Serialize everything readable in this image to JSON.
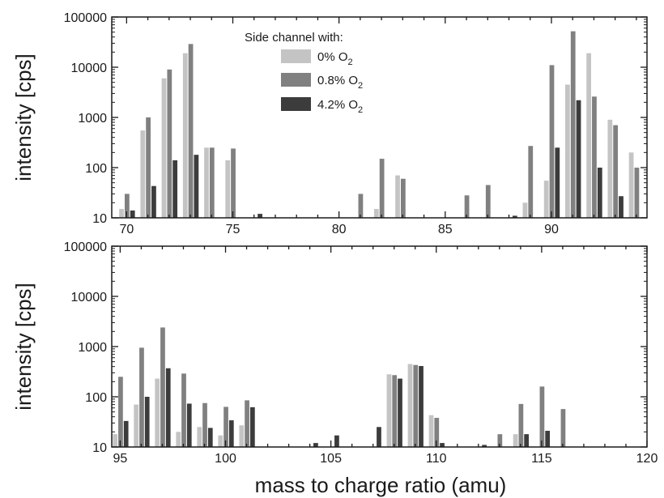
{
  "chart_data": [
    {
      "type": "bar",
      "ylabel": "intensity [cps]",
      "yscale": "log",
      "ylim": [
        10,
        100000
      ],
      "xlim": [
        69.3,
        94.5
      ],
      "xticks": [
        "70",
        "75",
        "80",
        "85",
        "90"
      ],
      "yticks": [
        "10",
        "100",
        "1000",
        "10000",
        "100000"
      ],
      "legend": {
        "title": "Side channel with:",
        "position": "top-center",
        "entries": [
          {
            "text": "0% O",
            "sub": "2"
          },
          {
            "text": "0.8% O",
            "sub": "2"
          },
          {
            "text": "4.2% O",
            "sub": "2"
          }
        ]
      },
      "series": [
        {
          "name": "0% O2",
          "color": "#c4c4c4",
          "x": [
            70,
            71,
            72,
            73,
            74,
            75,
            82,
            83,
            89,
            90,
            91,
            92,
            93,
            94
          ],
          "values": [
            15,
            550,
            6000,
            19000,
            250,
            140,
            15,
            70,
            20,
            55,
            4500,
            19000,
            900,
            200
          ]
        },
        {
          "name": "0.8% O2",
          "color": "#808080",
          "x": [
            70,
            71,
            72,
            73,
            74,
            75,
            81,
            82,
            83,
            86,
            87,
            89,
            90,
            91,
            92,
            93,
            94
          ],
          "values": [
            30,
            1000,
            9000,
            29000,
            250,
            240,
            30,
            150,
            60,
            28,
            45,
            270,
            11000,
            52000,
            2600,
            700,
            100
          ]
        },
        {
          "name": "4.2% O2",
          "color": "#3c3c3c",
          "x": [
            70,
            71,
            72,
            73,
            76,
            88,
            90,
            91,
            92,
            93
          ],
          "values": [
            14,
            43,
            140,
            180,
            12,
            11,
            250,
            2200,
            100,
            27
          ]
        }
      ]
    },
    {
      "type": "bar",
      "xlabel": "mass to charge ratio (amu)",
      "ylabel": "intensity [cps]",
      "yscale": "log",
      "ylim": [
        10,
        100000
      ],
      "xlim": [
        94.6,
        120
      ],
      "xticks": [
        "95",
        "100",
        "105",
        "110",
        "115",
        "120"
      ],
      "yticks": [
        "10",
        "100",
        "1000",
        "10000",
        "100000"
      ],
      "series": [
        {
          "name": "0% O2",
          "color": "#c4c4c4",
          "x": [
            95,
            96,
            97,
            98,
            99,
            100,
            101,
            108,
            109,
            110,
            114
          ],
          "values": [
            18,
            70,
            230,
            20,
            25,
            17,
            27,
            280,
            450,
            43,
            18
          ]
        },
        {
          "name": "0.8% O2",
          "color": "#808080",
          "x": [
            95,
            96,
            97,
            98,
            99,
            100,
            101,
            108,
            109,
            110,
            113,
            114,
            115,
            116
          ],
          "values": [
            250,
            950,
            2400,
            290,
            75,
            63,
            85,
            270,
            430,
            38,
            18,
            72,
            160,
            57
          ]
        },
        {
          "name": "4.2% O2",
          "color": "#3c3c3c",
          "x": [
            95,
            96,
            97,
            98,
            99,
            100,
            101,
            104,
            105,
            107,
            108,
            109,
            110,
            112,
            114,
            115
          ],
          "values": [
            33,
            100,
            370,
            73,
            24,
            34,
            62,
            12,
            17,
            25,
            230,
            410,
            12,
            11,
            18,
            21
          ]
        }
      ]
    }
  ]
}
